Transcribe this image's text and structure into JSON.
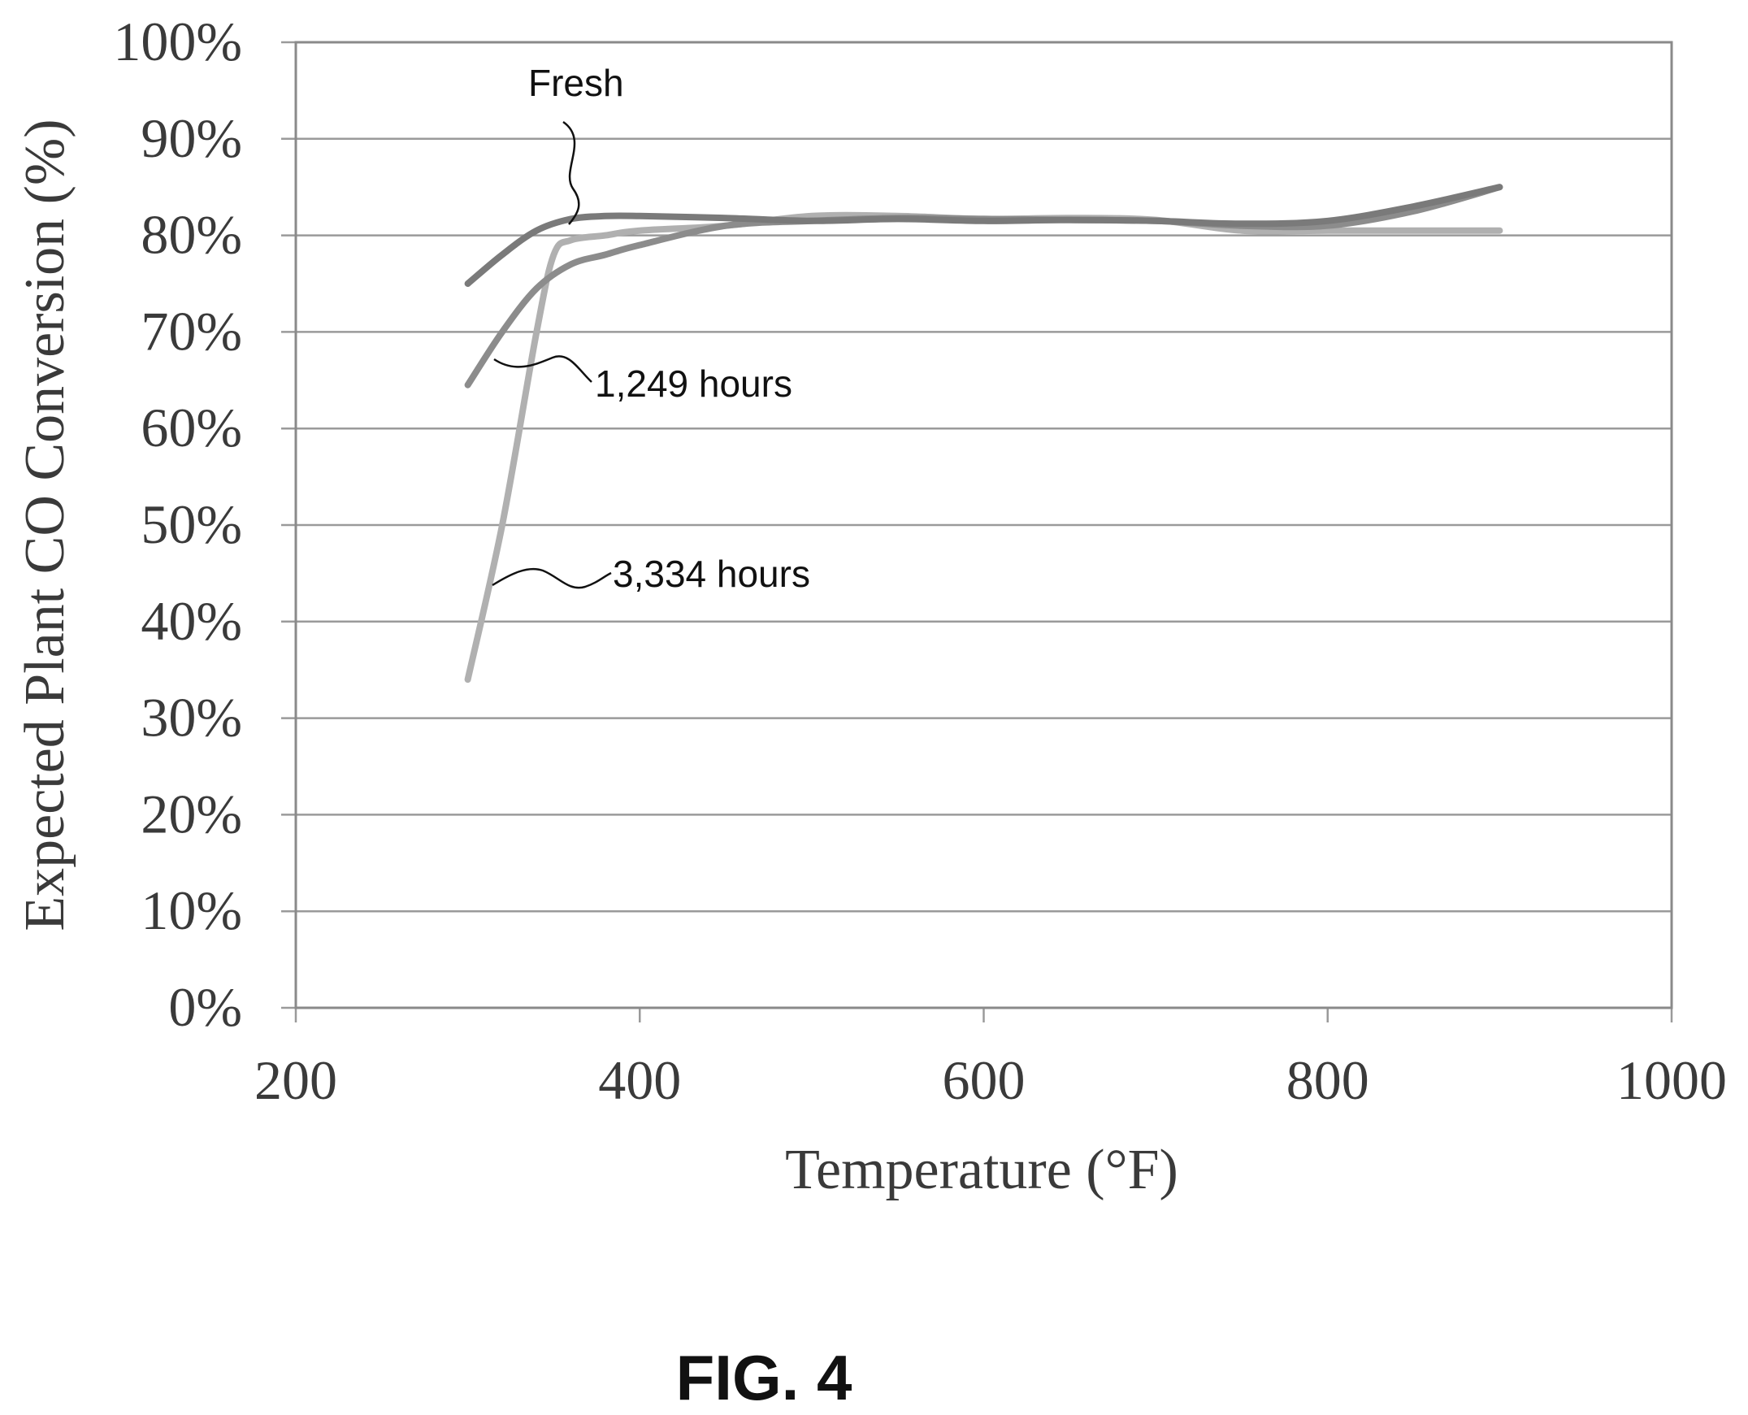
{
  "figure_label": "FIG. 4",
  "chart_data": {
    "type": "line",
    "title": "",
    "xlabel": "Temperature (°F)",
    "ylabel": "Expected Plant CO Conversion (%)",
    "xlim": [
      200,
      1000
    ],
    "ylim": [
      0,
      100
    ],
    "x_ticks": [
      200,
      400,
      600,
      800,
      1000
    ],
    "y_ticks": [
      "0%",
      "10%",
      "20%",
      "30%",
      "40%",
      "50%",
      "60%",
      "70%",
      "80%",
      "90%",
      "100%"
    ],
    "y_tick_values": [
      0,
      10,
      20,
      30,
      40,
      50,
      60,
      70,
      80,
      90,
      100
    ],
    "grid": true,
    "annotations": [
      {
        "text": "Fresh",
        "series": "Fresh"
      },
      {
        "text": "1,249 hours",
        "series": "1,249 hours"
      },
      {
        "text": "3,334 hours",
        "series": "3,334 hours"
      }
    ],
    "series": [
      {
        "name": "Fresh",
        "color": "#7a7a7a",
        "x": [
          300,
          320,
          340,
          360,
          380,
          400,
          450,
          500,
          550,
          600,
          650,
          700,
          750,
          800,
          850,
          900
        ],
        "y": [
          75,
          78,
          80.5,
          81.7,
          82,
          82,
          81.8,
          81.5,
          81.7,
          81.5,
          81.6,
          81.5,
          81.2,
          81.5,
          83,
          85
        ]
      },
      {
        "name": "1,249 hours",
        "color": "#8c8c8c",
        "x": [
          300,
          320,
          340,
          360,
          380,
          400,
          450,
          500,
          550,
          600,
          650,
          700,
          750,
          800,
          850,
          900
        ],
        "y": [
          64.5,
          70,
          74.5,
          77,
          78,
          79,
          81,
          81.5,
          81.8,
          81.7,
          81.6,
          81.5,
          81,
          81,
          82.5,
          85
        ]
      },
      {
        "name": "3,334 hours",
        "color": "#b0b0b0",
        "x": [
          300,
          320,
          340,
          350,
          360,
          380,
          400,
          450,
          500,
          550,
          600,
          650,
          700,
          750,
          800,
          850,
          900
        ],
        "y": [
          34,
          50,
          70,
          78,
          79.5,
          80,
          80.5,
          81,
          82,
          82,
          81.7,
          81.8,
          81.6,
          80.5,
          80.5,
          80.5,
          80.5
        ]
      }
    ]
  }
}
